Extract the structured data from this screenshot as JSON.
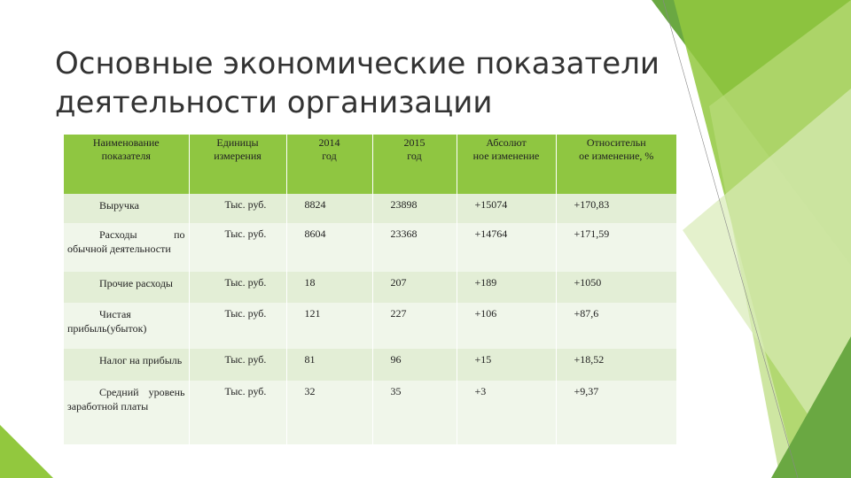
{
  "title": "Основные экономические показатели\nдеятельности организации",
  "table": {
    "header": [
      "Наименование\nпоказателя",
      "Единицы\nизмерения",
      "2014\nгод",
      "2015\nгод",
      "Абсолют\nное изменение",
      "Относительн\nое изменение, %"
    ],
    "rows": [
      [
        "Выручка",
        "Тыс. руб.",
        "8824",
        "23898",
        "+15074",
        "+170,83"
      ],
      [
        "Расходы по обычной деятельности",
        "Тыс. руб.",
        "8604",
        "23368",
        "+14764",
        "+171,59"
      ],
      [
        "Прочие расходы",
        "Тыс. руб.",
        "18",
        "207",
        "+189",
        "+1050"
      ],
      [
        "Чистая прибыль(убыток)",
        "Тыс. руб.",
        "121",
        "227",
        "+106",
        "+87,6"
      ],
      [
        "Налог на прибыль",
        "Тыс. руб.",
        "81",
        "96",
        "+15",
        "+18,52"
      ],
      [
        "Средний уровень заработной платы",
        "Тыс. руб.",
        "32",
        "35",
        "+3",
        "+9,37"
      ]
    ]
  }
}
